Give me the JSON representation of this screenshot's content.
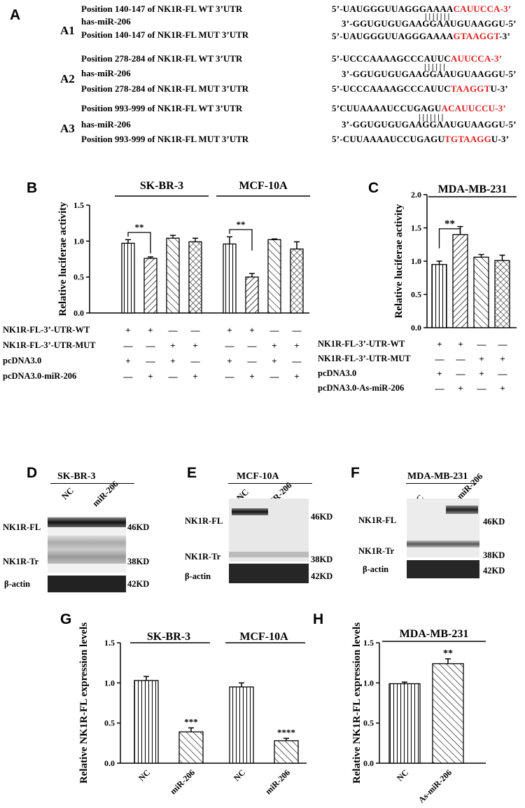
{
  "panels": {
    "A": "A",
    "B": "B",
    "C": "C",
    "D": "D",
    "E": "E",
    "F": "F",
    "G": "G",
    "H": "H"
  },
  "panelA": {
    "groups": [
      {
        "id": "A1",
        "wt_label": "Position 140-147 of NK1R-FL WT 3’UTR",
        "mir_label": "has-miR-206",
        "mut_label": "Position 140-147 of NK1R-FL MUT 3’UTR",
        "wt_seq_black": "5’-UAUGGGUUAGGGAAAA",
        "wt_seq_red": "CAUUCCA-3’",
        "pairs": "|||||||",
        "mir_seq": "3’-GGUGUGUGAAGGAAUGUAAGGU-5’",
        "mut_seq_black": "5’-UAUGGGUUAGGGAAAA",
        "mut_seq_red": "GTAAGGT",
        "mut_seq_tail": "-3’"
      },
      {
        "id": "A2",
        "wt_label": "Position 278-284 of NK1R-FL WT 3’UTR",
        "mir_label": "has-miR-206",
        "mut_label": "Position 278-284 of NK1R-FL MUT 3’UTR",
        "wt_seq_black": "5’-UCCCAAAAGCCCAUUC",
        "wt_seq_red": "AUUCCA-3’",
        "pairs": "||||||",
        "mir_seq": "3’-GGUGUGUGAAGGAAUGUAAGGU-5’",
        "mut_seq_black": "5’-UCCCAAAAGCCCAUUC",
        "mut_seq_red": "TAAGGT",
        "mut_seq_tail": "U-3’"
      },
      {
        "id": "A3",
        "wt_label": "Position 993-999 of NK1R-FL WT 3’UTR",
        "mir_label": "has-miR-206",
        "mut_label": "Position 993-999 of NK1R-FL MUT 3’UTR",
        "wt_seq_black": "5’CUUAAAAUCCUGAGU",
        "wt_seq_red": "ACAUUCCU-3’",
        "pairs": "|||||||",
        "mir_seq": "3’-GGUGUGUGAAGGAAUGUAAGGU-5’",
        "mut_seq_black": "5’-CUUAAAAUCCUGAGU",
        "mut_seq_red": "TGTAAGG",
        "mut_seq_tail": "U-3’"
      }
    ]
  },
  "panelB": {
    "rows": [
      "NK1R-FL-3’-UTR-WT",
      "NK1R-FL-3’-UTR-MUT",
      "pcDNA3.0",
      "pcDNA3.0-miR-206"
    ],
    "signs": [
      [
        "+",
        "+",
        "—",
        "—",
        "+",
        "+",
        "—",
        "—"
      ],
      [
        "—",
        "—",
        "+",
        "+",
        "—",
        "—",
        "+",
        "+"
      ],
      [
        "+",
        "—",
        "+",
        "—",
        "+",
        "—",
        "+",
        "—"
      ],
      [
        "—",
        "+",
        "—",
        "+",
        "—",
        "+",
        "—",
        "+"
      ]
    ]
  },
  "panelC": {
    "rows": [
      "NK1R-FL-3’-UTR-WT",
      "NK1R-FL-3’-UTR-MUT",
      "pcDNA3.0",
      "pcDNA3.0-As-miR-206"
    ],
    "signs": [
      [
        "+",
        "+",
        "—",
        "—"
      ],
      [
        "—",
        "—",
        "+",
        "+"
      ],
      [
        "+",
        "—",
        "+",
        "—"
      ],
      [
        "—",
        "+",
        "—",
        "+"
      ]
    ]
  },
  "chart_data": [
    {
      "panel": "B",
      "type": "bar",
      "ylabel": "Relative luciferae activity",
      "ylim": [
        0,
        1.5
      ],
      "yticks": [
        "0.0",
        "0.5",
        "1.0",
        "1.5"
      ],
      "groups": [
        {
          "name": "SK-BR-3",
          "values": [
            0.97,
            0.76,
            1.04,
            0.99
          ],
          "errors": [
            0.05,
            0.02,
            0.04,
            0.05
          ]
        },
        {
          "name": "MCF-10A",
          "values": [
            0.96,
            0.5,
            1.02,
            0.89
          ],
          "errors": [
            0.1,
            0.05,
            0.01,
            0.1
          ]
        }
      ],
      "annotations": [
        "**",
        "**"
      ]
    },
    {
      "panel": "C",
      "type": "bar",
      "title": "MDA-MB-231",
      "ylabel": "Relative luciferae activity",
      "ylim": [
        0,
        2.0
      ],
      "yticks": [
        "0.0",
        "0.5",
        "1.0",
        "1.5",
        "2.0"
      ],
      "values": [
        0.95,
        1.4,
        1.06,
        1.01
      ],
      "errors": [
        0.05,
        0.12,
        0.04,
        0.08
      ],
      "annotations": [
        "**"
      ]
    },
    {
      "panel": "G",
      "type": "bar",
      "ylabel": "Relative NK1R-FL expression levels",
      "ylim": [
        0,
        1.5
      ],
      "yticks": [
        "0.0",
        "0.5",
        "1.0",
        "1.5"
      ],
      "groups": [
        {
          "name": "SK-BR-3",
          "categories": [
            "NC",
            "miR-206"
          ],
          "values": [
            1.03,
            0.39
          ],
          "errors": [
            0.05,
            0.05
          ],
          "sig": [
            "",
            "***"
          ]
        },
        {
          "name": "MCF-10A",
          "categories": [
            "NC",
            "miR-206"
          ],
          "values": [
            0.95,
            0.28
          ],
          "errors": [
            0.05,
            0.03
          ],
          "sig": [
            "",
            "****"
          ]
        }
      ]
    },
    {
      "panel": "H",
      "type": "bar",
      "title": "MDA-MB-231",
      "ylabel": "Relative NK1R-FL expression levels",
      "ylim": [
        0,
        1.5
      ],
      "yticks": [
        "0.0",
        "0.5",
        "1.0",
        "1.5"
      ],
      "categories": [
        "NC",
        "As-miR-206"
      ],
      "values": [
        0.99,
        1.24
      ],
      "errors": [
        0.02,
        0.06
      ],
      "sig": [
        "",
        "**"
      ]
    }
  ],
  "blots": {
    "D": {
      "title": "SK-BR-3",
      "lanes": [
        "NC",
        "miR-206"
      ],
      "bands": [
        "NK1R-FL",
        "NK1R-Tr",
        "β-actin"
      ],
      "sizes": [
        "46KD",
        "38KD",
        "42KD"
      ]
    },
    "E": {
      "title": "MCF-10A",
      "lanes": [
        "NC",
        "miR-206"
      ],
      "bands": [
        "NK1R-FL",
        "NK1R-Tr",
        "β-actin"
      ],
      "sizes": [
        "46KD",
        "38KD",
        "42KD"
      ]
    },
    "F": {
      "title": "MDA-MB-231",
      "lanes": [
        "NC",
        "As-miR-206"
      ],
      "bands": [
        "NK1R-FL",
        "NK1R-Tr",
        "β-actin"
      ],
      "sizes": [
        "46KD",
        "38KD",
        "42KD"
      ]
    }
  }
}
